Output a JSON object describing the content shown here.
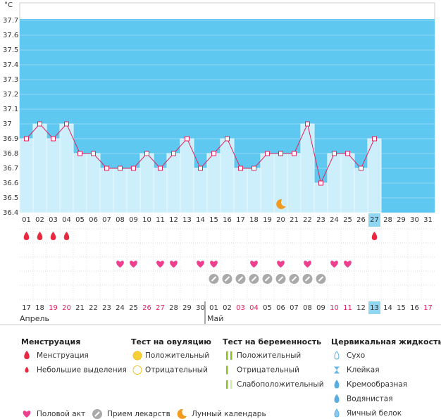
{
  "chart_data": {
    "type": "line",
    "y_label": "°C",
    "categories": [
      "01",
      "02",
      "03",
      "04",
      "05",
      "06",
      "07",
      "08",
      "09",
      "10",
      "11",
      "12",
      "13",
      "14",
      "15",
      "16",
      "17",
      "18",
      "19",
      "20",
      "21",
      "22",
      "23",
      "24",
      "25",
      "26",
      "27",
      "28",
      "29",
      "30",
      "31"
    ],
    "values": [
      36.9,
      37,
      36.9,
      37,
      36.8,
      36.8,
      36.7,
      36.7,
      36.7,
      36.8,
      36.7,
      36.8,
      36.9,
      36.7,
      36.8,
      36.9,
      36.7,
      36.7,
      36.8,
      36.8,
      36.8,
      37,
      36.6,
      36.8,
      36.8,
      36.7,
      36.9,
      null,
      null,
      null,
      null
    ],
    "ylim": [
      36.4,
      37.8
    ],
    "yticks": [
      36.4,
      36.5,
      36.6,
      36.7,
      36.8,
      36.9,
      37,
      37.1,
      37.2,
      37.3,
      37.4,
      37.5,
      37.6,
      37.7
    ],
    "color": "#e0245e",
    "background": "#5fc8f0",
    "column_color": "#cdeefb",
    "selected_day": 27,
    "events": {
      "menstruation": [
        1,
        2,
        3,
        4,
        27
      ],
      "intercourse": [
        8,
        9,
        11,
        12,
        14,
        15,
        18,
        20,
        22,
        24,
        25
      ],
      "medication": [
        15,
        16,
        17,
        18,
        19,
        20,
        21,
        22,
        23
      ],
      "lunar": [
        20
      ]
    },
    "cycle_row": {
      "labels": [
        "17",
        "18",
        "19",
        "20",
        "21",
        "22",
        "23",
        "24",
        "25",
        "26",
        "27",
        "28",
        "29",
        "30",
        "01",
        "02",
        "03",
        "04",
        "05",
        "06",
        "07",
        "08",
        "09",
        "10",
        "11",
        "12",
        "13",
        "14",
        "15",
        "16",
        "17"
      ],
      "holidays": [
        2,
        3,
        9,
        10,
        16,
        17,
        23,
        24,
        30
      ],
      "holiday_color": "#e0245e",
      "selected": 26,
      "months": [
        {
          "label": "Апрель",
          "start": 0
        },
        {
          "label": "Май",
          "start": 14
        }
      ]
    }
  },
  "legend": {
    "groups": [
      {
        "title": "Менструация",
        "items": [
          "Менструация",
          "Небольшие выделения"
        ]
      },
      {
        "title": "Тест на овуляцию",
        "items": [
          "Положительный",
          "Отрицательный"
        ]
      },
      {
        "title": "Тест на беременность",
        "items": [
          "Положительный",
          "Отрицательный",
          "Слабоположительный"
        ]
      },
      {
        "title": "Цервикальная жидкость",
        "items": [
          "Сухо",
          "Клейкая",
          "Кремообразная",
          "Водянистая",
          "Яичный белок"
        ]
      }
    ],
    "bottom": [
      "Половой акт",
      "Прием лекарств",
      "Лунный календарь"
    ]
  }
}
